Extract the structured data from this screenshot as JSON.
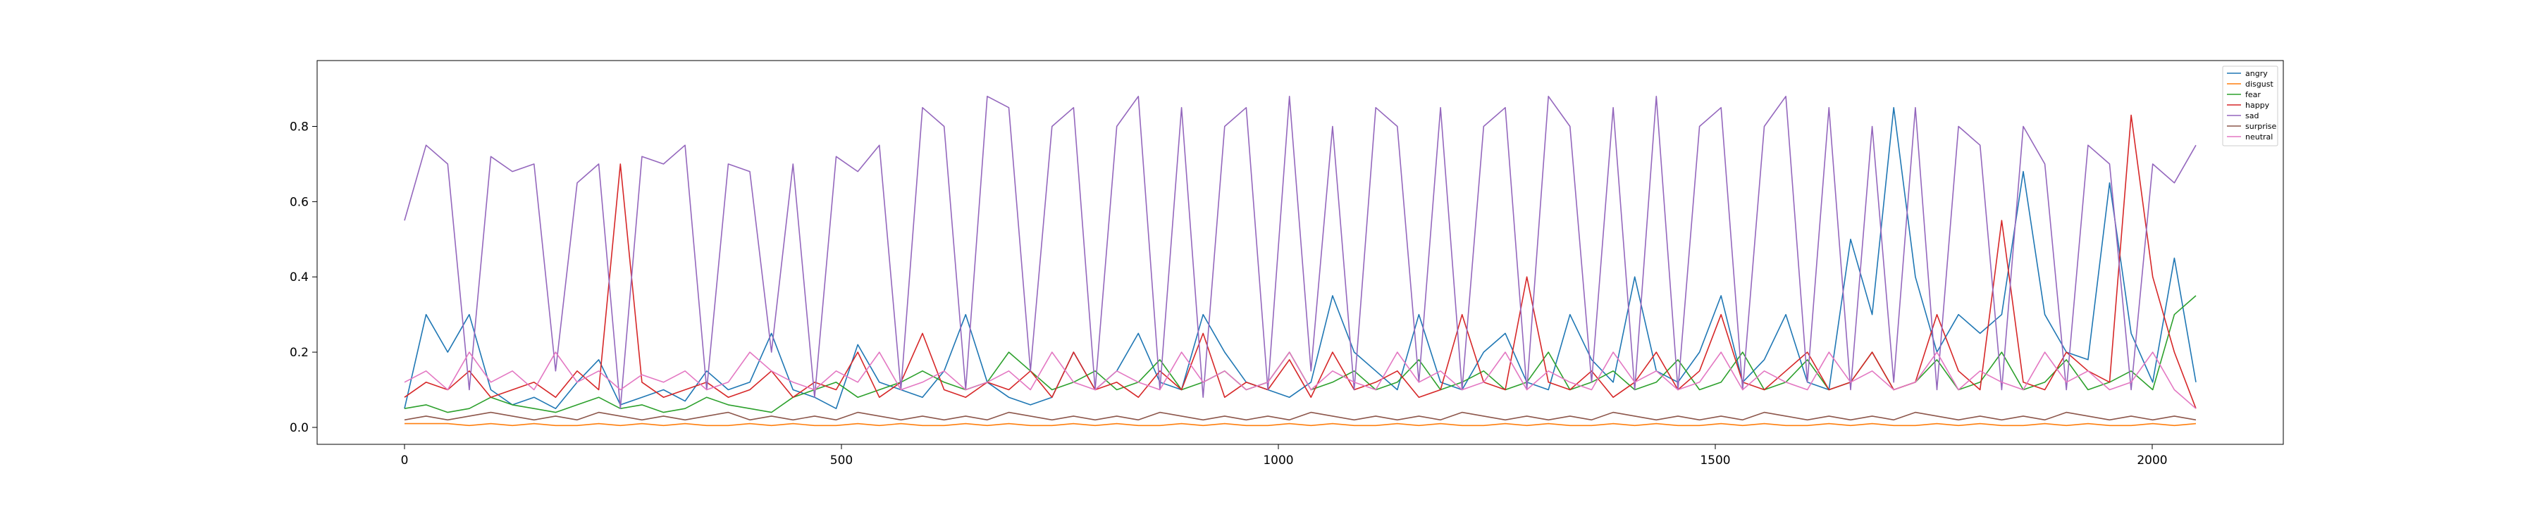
{
  "chart_data": {
    "type": "line",
    "title": "",
    "xlabel": "",
    "ylabel": "",
    "xlim": [
      -100,
      2150
    ],
    "ylim": [
      -0.045,
      0.975
    ],
    "x_ticks": [
      0,
      500,
      1000,
      1500,
      2000
    ],
    "x_tick_labels": [
      "0",
      "500",
      "1000",
      "1500",
      "2000"
    ],
    "y_ticks": [
      0.0,
      0.2,
      0.4,
      0.6,
      0.8
    ],
    "y_tick_labels": [
      "0.0",
      "0.2",
      "0.4",
      "0.6",
      "0.8"
    ],
    "x_range": [
      0,
      2050
    ],
    "grid": false,
    "legend_position": "top-right",
    "series": [
      {
        "name": "angry",
        "color": "#1f77b4",
        "values": [
          0.05,
          0.3,
          0.2,
          0.3,
          0.1,
          0.06,
          0.08,
          0.05,
          0.12,
          0.18,
          0.06,
          0.08,
          0.1,
          0.07,
          0.15,
          0.1,
          0.12,
          0.25,
          0.1,
          0.08,
          0.05,
          0.22,
          0.12,
          0.1,
          0.08,
          0.15,
          0.3,
          0.12,
          0.08,
          0.06,
          0.08,
          0.2,
          0.1,
          0.15,
          0.25,
          0.12,
          0.1,
          0.3,
          0.2,
          0.12,
          0.1,
          0.08,
          0.12,
          0.35,
          0.2,
          0.15,
          0.1,
          0.3,
          0.12,
          0.1,
          0.2,
          0.25,
          0.12,
          0.1,
          0.3,
          0.18,
          0.12,
          0.4,
          0.15,
          0.12,
          0.2,
          0.35,
          0.12,
          0.18,
          0.3,
          0.12,
          0.1,
          0.5,
          0.3,
          0.85,
          0.4,
          0.2,
          0.3,
          0.25,
          0.3,
          0.68,
          0.3,
          0.2,
          0.18,
          0.65,
          0.25,
          0.12,
          0.45,
          0.12
        ]
      },
      {
        "name": "disgust",
        "color": "#ff7f0e",
        "values": [
          0.01,
          0.01,
          0.01,
          0.005,
          0.01,
          0.005,
          0.01,
          0.005,
          0.005,
          0.01,
          0.005,
          0.01,
          0.005,
          0.01,
          0.005,
          0.005,
          0.01,
          0.005,
          0.01,
          0.005,
          0.005,
          0.01,
          0.005,
          0.01,
          0.005,
          0.005,
          0.01,
          0.005,
          0.01,
          0.005,
          0.005,
          0.01,
          0.005,
          0.01,
          0.005,
          0.005,
          0.01,
          0.005,
          0.01,
          0.005,
          0.005,
          0.01,
          0.005,
          0.01,
          0.005,
          0.005,
          0.01,
          0.005,
          0.01,
          0.005,
          0.005,
          0.01,
          0.005,
          0.01,
          0.005,
          0.005,
          0.01,
          0.005,
          0.01,
          0.005,
          0.005,
          0.01,
          0.005,
          0.01,
          0.005,
          0.005,
          0.01,
          0.005,
          0.01,
          0.005,
          0.005,
          0.01,
          0.005,
          0.01,
          0.005,
          0.005,
          0.01,
          0.005,
          0.01,
          0.005,
          0.005,
          0.01,
          0.005,
          0.01
        ]
      },
      {
        "name": "fear",
        "color": "#2ca02c",
        "values": [
          0.05,
          0.06,
          0.04,
          0.05,
          0.08,
          0.06,
          0.05,
          0.04,
          0.06,
          0.08,
          0.05,
          0.06,
          0.04,
          0.05,
          0.08,
          0.06,
          0.05,
          0.04,
          0.08,
          0.1,
          0.12,
          0.08,
          0.1,
          0.12,
          0.15,
          0.12,
          0.1,
          0.12,
          0.2,
          0.15,
          0.1,
          0.12,
          0.15,
          0.1,
          0.12,
          0.18,
          0.1,
          0.12,
          0.15,
          0.1,
          0.12,
          0.2,
          0.1,
          0.12,
          0.15,
          0.1,
          0.12,
          0.18,
          0.1,
          0.12,
          0.15,
          0.1,
          0.12,
          0.2,
          0.1,
          0.12,
          0.15,
          0.1,
          0.12,
          0.18,
          0.1,
          0.12,
          0.2,
          0.1,
          0.12,
          0.18,
          0.1,
          0.12,
          0.2,
          0.1,
          0.12,
          0.18,
          0.1,
          0.12,
          0.2,
          0.1,
          0.12,
          0.18,
          0.1,
          0.12,
          0.15,
          0.1,
          0.3,
          0.35
        ]
      },
      {
        "name": "happy",
        "color": "#d62728",
        "values": [
          0.08,
          0.12,
          0.1,
          0.15,
          0.08,
          0.1,
          0.12,
          0.08,
          0.15,
          0.1,
          0.7,
          0.12,
          0.08,
          0.1,
          0.12,
          0.08,
          0.1,
          0.15,
          0.08,
          0.12,
          0.1,
          0.2,
          0.08,
          0.12,
          0.25,
          0.1,
          0.08,
          0.12,
          0.1,
          0.15,
          0.08,
          0.2,
          0.1,
          0.12,
          0.08,
          0.15,
          0.1,
          0.25,
          0.08,
          0.12,
          0.1,
          0.18,
          0.08,
          0.2,
          0.1,
          0.12,
          0.15,
          0.08,
          0.1,
          0.3,
          0.12,
          0.1,
          0.4,
          0.12,
          0.1,
          0.15,
          0.08,
          0.12,
          0.2,
          0.1,
          0.15,
          0.3,
          0.12,
          0.1,
          0.15,
          0.2,
          0.1,
          0.12,
          0.2,
          0.1,
          0.12,
          0.3,
          0.15,
          0.1,
          0.55,
          0.12,
          0.1,
          0.2,
          0.15,
          0.12,
          0.83,
          0.4,
          0.2,
          0.05
        ]
      },
      {
        "name": "sad",
        "color": "#9467bd",
        "values": [
          0.55,
          0.75,
          0.7,
          0.1,
          0.72,
          0.68,
          0.7,
          0.15,
          0.65,
          0.7,
          0.05,
          0.72,
          0.7,
          0.75,
          0.1,
          0.7,
          0.68,
          0.2,
          0.7,
          0.08,
          0.72,
          0.68,
          0.75,
          0.1,
          0.85,
          0.8,
          0.1,
          0.88,
          0.85,
          0.15,
          0.8,
          0.85,
          0.1,
          0.8,
          0.88,
          0.1,
          0.85,
          0.08,
          0.8,
          0.85,
          0.1,
          0.88,
          0.15,
          0.8,
          0.1,
          0.85,
          0.8,
          0.12,
          0.85,
          0.1,
          0.8,
          0.85,
          0.1,
          0.88,
          0.8,
          0.12,
          0.85,
          0.1,
          0.88,
          0.1,
          0.8,
          0.85,
          0.1,
          0.8,
          0.88,
          0.12,
          0.85,
          0.1,
          0.8,
          0.12,
          0.85,
          0.1,
          0.8,
          0.75,
          0.1,
          0.8,
          0.7,
          0.1,
          0.75,
          0.7,
          0.1,
          0.7,
          0.65,
          0.75
        ]
      },
      {
        "name": "surprise",
        "color": "#8c564b",
        "values": [
          0.02,
          0.03,
          0.02,
          0.03,
          0.04,
          0.03,
          0.02,
          0.03,
          0.02,
          0.04,
          0.03,
          0.02,
          0.03,
          0.02,
          0.03,
          0.04,
          0.02,
          0.03,
          0.02,
          0.03,
          0.02,
          0.04,
          0.03,
          0.02,
          0.03,
          0.02,
          0.03,
          0.02,
          0.04,
          0.03,
          0.02,
          0.03,
          0.02,
          0.03,
          0.02,
          0.04,
          0.03,
          0.02,
          0.03,
          0.02,
          0.03,
          0.02,
          0.04,
          0.03,
          0.02,
          0.03,
          0.02,
          0.03,
          0.02,
          0.04,
          0.03,
          0.02,
          0.03,
          0.02,
          0.03,
          0.02,
          0.04,
          0.03,
          0.02,
          0.03,
          0.02,
          0.03,
          0.02,
          0.04,
          0.03,
          0.02,
          0.03,
          0.02,
          0.03,
          0.02,
          0.04,
          0.03,
          0.02,
          0.03,
          0.02,
          0.03,
          0.02,
          0.04,
          0.03,
          0.02,
          0.03,
          0.02,
          0.03,
          0.02
        ]
      },
      {
        "name": "neutral",
        "color": "#e377c2",
        "values": [
          0.12,
          0.15,
          0.1,
          0.2,
          0.12,
          0.15,
          0.1,
          0.2,
          0.12,
          0.15,
          0.1,
          0.14,
          0.12,
          0.15,
          0.1,
          0.12,
          0.2,
          0.15,
          0.12,
          0.1,
          0.15,
          0.12,
          0.2,
          0.1,
          0.12,
          0.15,
          0.1,
          0.12,
          0.15,
          0.1,
          0.2,
          0.12,
          0.1,
          0.15,
          0.12,
          0.1,
          0.2,
          0.12,
          0.15,
          0.1,
          0.12,
          0.2,
          0.1,
          0.15,
          0.12,
          0.1,
          0.2,
          0.12,
          0.15,
          0.1,
          0.12,
          0.2,
          0.1,
          0.15,
          0.12,
          0.1,
          0.2,
          0.12,
          0.15,
          0.1,
          0.12,
          0.2,
          0.1,
          0.15,
          0.12,
          0.1,
          0.2,
          0.12,
          0.15,
          0.1,
          0.12,
          0.2,
          0.1,
          0.15,
          0.12,
          0.1,
          0.2,
          0.12,
          0.15,
          0.1,
          0.12,
          0.2,
          0.1,
          0.05
        ]
      }
    ]
  }
}
